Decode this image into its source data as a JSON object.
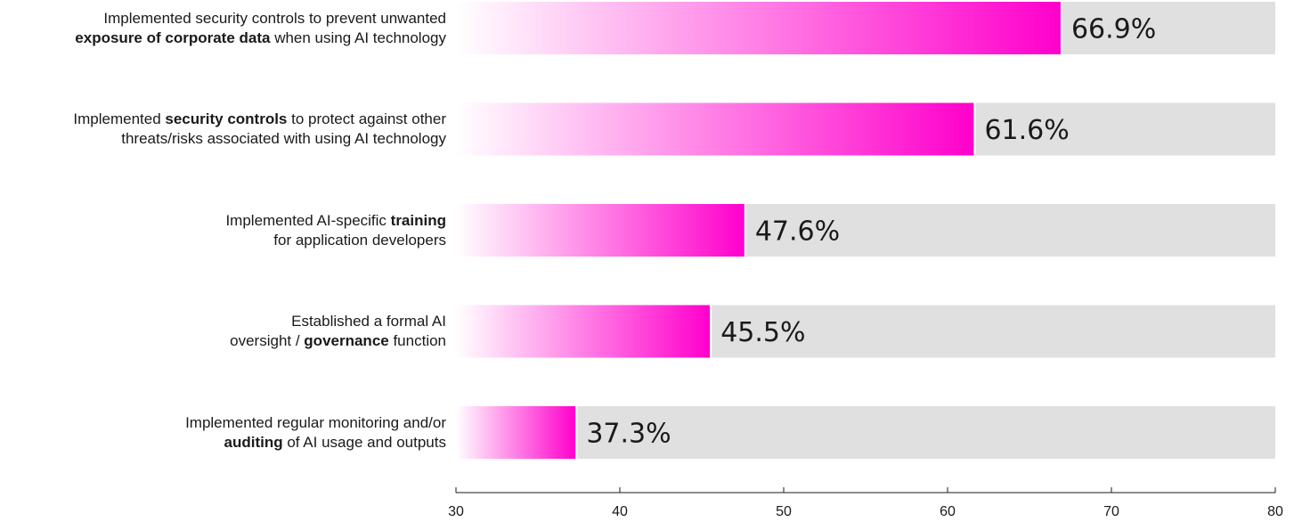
{
  "chart_data": {
    "type": "bar",
    "orientation": "horizontal",
    "categories": [
      {
        "line1": [
          {
            "text": "Implemented security controls to prevent unwanted",
            "bold": false
          }
        ],
        "line2": [
          {
            "text": "exposure of corporate data",
            "bold": true
          },
          {
            "text": " when using AI technology",
            "bold": false
          }
        ]
      },
      {
        "line1": [
          {
            "text": "Implemented ",
            "bold": false
          },
          {
            "text": "security controls",
            "bold": true
          },
          {
            "text": " to protect against other",
            "bold": false
          }
        ],
        "line2": [
          {
            "text": "threats/risks associated with using AI technology",
            "bold": false
          }
        ]
      },
      {
        "line1": [
          {
            "text": "Implemented AI-specific ",
            "bold": false
          },
          {
            "text": "training",
            "bold": true
          }
        ],
        "line2": [
          {
            "text": "for application developers",
            "bold": false
          }
        ]
      },
      {
        "line1": [
          {
            "text": "Established a formal AI",
            "bold": false
          }
        ],
        "line2": [
          {
            "text": "oversight / ",
            "bold": false
          },
          {
            "text": "governance",
            "bold": true
          },
          {
            "text": " function",
            "bold": false
          }
        ]
      },
      {
        "line1": [
          {
            "text": "Implemented regular monitoring and/or",
            "bold": false
          }
        ],
        "line2": [
          {
            "text": "auditing",
            "bold": true
          },
          {
            "text": " of AI usage and outputs",
            "bold": false
          }
        ]
      }
    ],
    "values": [
      66.9,
      61.6,
      47.6,
      45.5,
      37.3
    ],
    "value_labels": [
      "66.9%",
      "61.6%",
      "47.6%",
      "45.5%",
      "37.3%"
    ],
    "xlim": [
      30,
      80
    ],
    "xticks": [
      30,
      40,
      50,
      60,
      70,
      80
    ],
    "grid": false,
    "colors": {
      "bar_start": "#ffffff",
      "bar_end": "#ff00cc",
      "track": "#e0e0e0",
      "text": "#1a1a1a",
      "axis": "#1a1a1a"
    }
  }
}
